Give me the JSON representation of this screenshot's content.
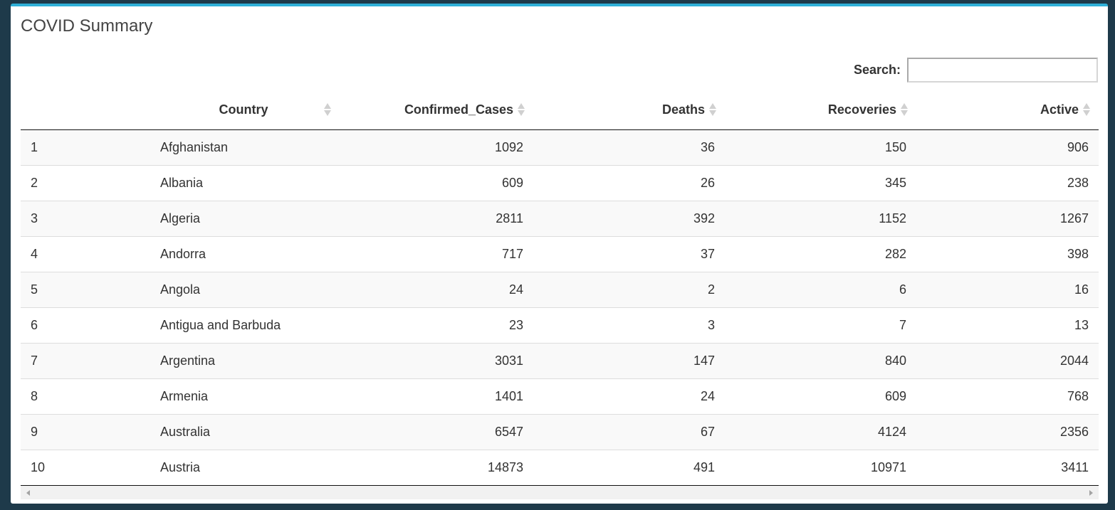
{
  "box": {
    "title": "COVID Summary",
    "accent_color": "#2fb0d8"
  },
  "search": {
    "label": "Search:",
    "value": "",
    "placeholder": ""
  },
  "table": {
    "columns": [
      {
        "label": "",
        "sortable": false
      },
      {
        "label": "Country",
        "sortable": true
      },
      {
        "label": "Confirmed_Cases",
        "sortable": true
      },
      {
        "label": "Deaths",
        "sortable": true
      },
      {
        "label": "Recoveries",
        "sortable": true
      },
      {
        "label": "Active",
        "sortable": true
      }
    ],
    "rows": [
      {
        "idx": "1",
        "country": "Afghanistan",
        "confirmed": "1092",
        "deaths": "36",
        "recoveries": "150",
        "active": "906"
      },
      {
        "idx": "2",
        "country": "Albania",
        "confirmed": "609",
        "deaths": "26",
        "recoveries": "345",
        "active": "238"
      },
      {
        "idx": "3",
        "country": "Algeria",
        "confirmed": "2811",
        "deaths": "392",
        "recoveries": "1152",
        "active": "1267"
      },
      {
        "idx": "4",
        "country": "Andorra",
        "confirmed": "717",
        "deaths": "37",
        "recoveries": "282",
        "active": "398"
      },
      {
        "idx": "5",
        "country": "Angola",
        "confirmed": "24",
        "deaths": "2",
        "recoveries": "6",
        "active": "16"
      },
      {
        "idx": "6",
        "country": "Antigua and Barbuda",
        "confirmed": "23",
        "deaths": "3",
        "recoveries": "7",
        "active": "13"
      },
      {
        "idx": "7",
        "country": "Argentina",
        "confirmed": "3031",
        "deaths": "147",
        "recoveries": "840",
        "active": "2044"
      },
      {
        "idx": "8",
        "country": "Armenia",
        "confirmed": "1401",
        "deaths": "24",
        "recoveries": "609",
        "active": "768"
      },
      {
        "idx": "9",
        "country": "Australia",
        "confirmed": "6547",
        "deaths": "67",
        "recoveries": "4124",
        "active": "2356"
      },
      {
        "idx": "10",
        "country": "Austria",
        "confirmed": "14873",
        "deaths": "491",
        "recoveries": "10971",
        "active": "3411"
      }
    ]
  }
}
